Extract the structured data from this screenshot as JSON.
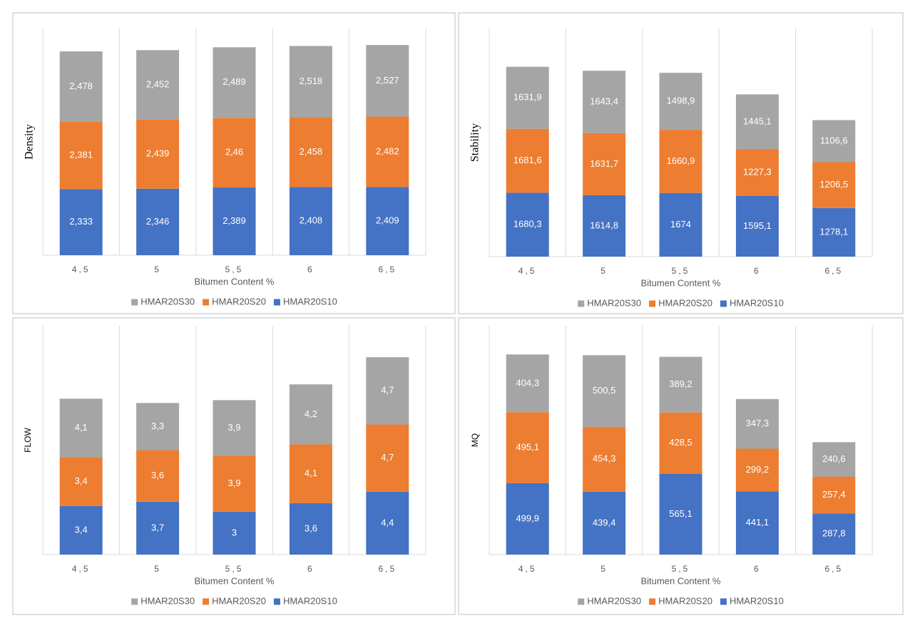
{
  "chart_data": [
    {
      "type": "bar",
      "stacked": true,
      "y_label": "Density",
      "x_label": "Bitumen Content %",
      "categories": [
        "4,5",
        "5",
        "5,5",
        "6",
        "6,5"
      ],
      "ylim": [
        0,
        8
      ],
      "series": [
        {
          "name": "HMAR20S10",
          "color": "#4472c4",
          "values": [
            2.333,
            2.346,
            2.389,
            2.408,
            2.409
          ],
          "value_labels": [
            "2,333",
            "2,346",
            "2,389",
            "2,408",
            "2,409"
          ]
        },
        {
          "name": "HMAR20S20",
          "color": "#ed7d31",
          "values": [
            2.381,
            2.439,
            2.46,
            2.458,
            2.482
          ],
          "value_labels": [
            "2,381",
            "2,439",
            "2,46",
            "2,458",
            "2,482"
          ]
        },
        {
          "name": "HMAR20S30",
          "color": "#a5a5a5",
          "values": [
            2.478,
            2.452,
            2.489,
            2.518,
            2.527
          ],
          "value_labels": [
            "2,478",
            "2,452",
            "2,489",
            "2,518",
            "2,527"
          ]
        }
      ]
    },
    {
      "type": "bar",
      "stacked": true,
      "y_label": "Stability",
      "x_label": "Bitumen Content %",
      "categories": [
        "4,5",
        "5",
        "5,5",
        "6",
        "6,5"
      ],
      "ylim": [
        0,
        6000
      ],
      "series": [
        {
          "name": "HMAR20S10",
          "color": "#4472c4",
          "values": [
            1680.3,
            1614.8,
            1674,
            1595.1,
            1278.1
          ],
          "value_labels": [
            "1680,3",
            "1614,8",
            "1674",
            "1595,1",
            "1278,1"
          ]
        },
        {
          "name": "HMAR20S20",
          "color": "#ed7d31",
          "values": [
            1681.6,
            1631.7,
            1660.9,
            1227.3,
            1206.5
          ],
          "value_labels": [
            "1681,6",
            "1631,7",
            "1660,9",
            "1227,3",
            "1206,5"
          ]
        },
        {
          "name": "HMAR20S30",
          "color": "#a5a5a5",
          "values": [
            1631.9,
            1643.4,
            1498.9,
            1445.1,
            1106.6
          ],
          "value_labels": [
            "1631,9",
            "1643,4",
            "1498,9",
            "1445,1",
            "1106,6"
          ]
        }
      ]
    },
    {
      "type": "bar",
      "stacked": true,
      "y_label": "FLOW",
      "x_label": "Bitumen Content %",
      "categories": [
        "4,5",
        "5",
        "5,5",
        "6",
        "6,5"
      ],
      "ylim": [
        0,
        16
      ],
      "series": [
        {
          "name": "HMAR20S10",
          "color": "#4472c4",
          "values": [
            3.4,
            3.7,
            3,
            3.6,
            4.4
          ],
          "value_labels": [
            "3,4",
            "3,7",
            "3",
            "3,6",
            "4,4"
          ]
        },
        {
          "name": "HMAR20S20",
          "color": "#ed7d31",
          "values": [
            3.4,
            3.6,
            3.9,
            4.1,
            4.7
          ],
          "value_labels": [
            "3,4",
            "3,6",
            "3,9",
            "4,1",
            "4,7"
          ]
        },
        {
          "name": "HMAR20S30",
          "color": "#a5a5a5",
          "values": [
            4.1,
            3.3,
            3.9,
            4.2,
            4.7
          ],
          "value_labels": [
            "4,1",
            "3,3",
            "3,9",
            "4,2",
            "4,7"
          ]
        }
      ]
    },
    {
      "type": "bar",
      "stacked": true,
      "y_label": "MQ",
      "x_label": "Bitumen Content %",
      "categories": [
        "4,5",
        "5",
        "5,5",
        "6",
        "6,5"
      ],
      "ylim": [
        0,
        1600
      ],
      "series": [
        {
          "name": "HMAR20S10",
          "color": "#4472c4",
          "values": [
            499.9,
            439.4,
            565.1,
            441.1,
            287.8
          ],
          "value_labels": [
            "499,9",
            "439,4",
            "565,1",
            "441,1",
            "287,8"
          ]
        },
        {
          "name": "HMAR20S20",
          "color": "#ed7d31",
          "values": [
            495.1,
            454.3,
            428.5,
            299.2,
            257.4
          ],
          "value_labels": [
            "495,1",
            "454,3",
            "428,5",
            "299,2",
            "257,4"
          ]
        },
        {
          "name": "HMAR20S30",
          "color": "#a5a5a5",
          "values": [
            404.3,
            500.5,
            389.2,
            347.3,
            240.6
          ],
          "value_labels": [
            "404,3",
            "500,5",
            "389,2",
            "347,3",
            "240,6"
          ]
        }
      ]
    }
  ]
}
